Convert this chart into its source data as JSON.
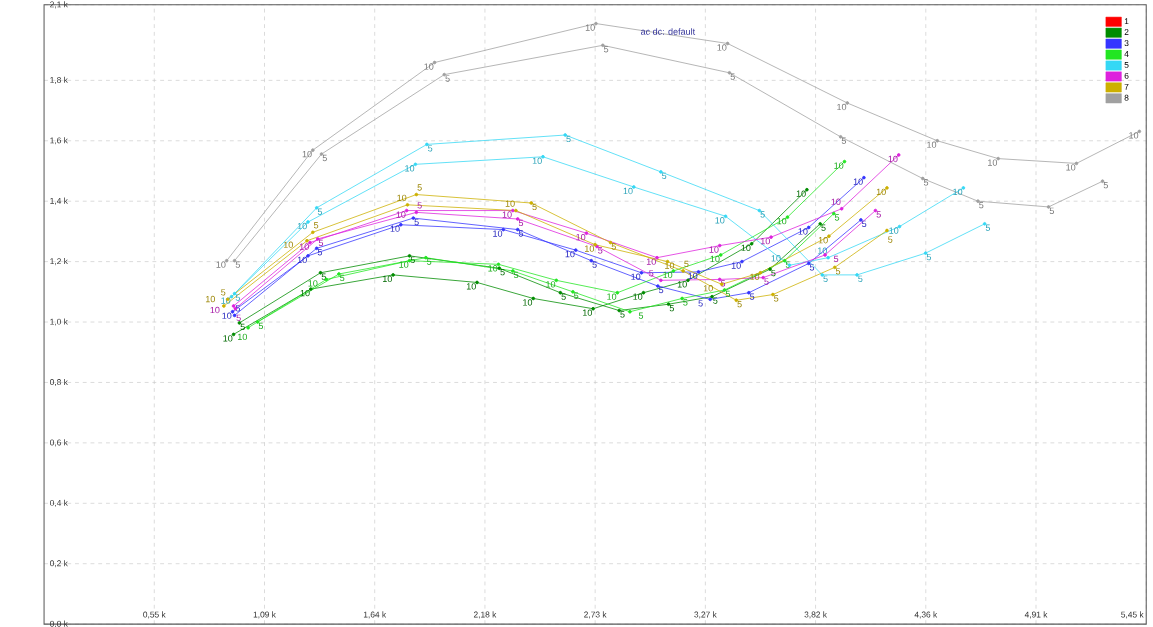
{
  "chart_data": {
    "type": "line",
    "xlim": [
      0,
      5.45
    ],
    "ylim": [
      0,
      2.05
    ],
    "xticks": [
      {
        "value": 0.545,
        "label": "0,55 k"
      },
      {
        "value": 1.09,
        "label": "1,09 k"
      },
      {
        "value": 1.635,
        "label": "1,64 k"
      },
      {
        "value": 2.18,
        "label": "2,18 k"
      },
      {
        "value": 2.725,
        "label": "2,73 k"
      },
      {
        "value": 3.27,
        "label": "3,27 k"
      },
      {
        "value": 3.815,
        "label": "3,82 k"
      },
      {
        "value": 4.36,
        "label": "4,36 k"
      },
      {
        "value": 4.905,
        "label": "4,91 k"
      },
      {
        "value": 5.45,
        "label": "5,45 k"
      }
    ],
    "yticks": [
      {
        "value": 0,
        "label": "0,0 k"
      },
      {
        "value": 0.2,
        "label": "0,2 k"
      },
      {
        "value": 0.4,
        "label": "0,4 k"
      },
      {
        "value": 0.6,
        "label": "0,6 k"
      },
      {
        "value": 0.8,
        "label": "0,8 k"
      },
      {
        "value": 1.0,
        "label": "1,0 k"
      },
      {
        "value": 1.2,
        "label": "1,2 k"
      },
      {
        "value": 1.4,
        "label": "1,4 k"
      },
      {
        "value": 1.6,
        "label": "1,6 k"
      },
      {
        "value": 1.8,
        "label": "1,8 k"
      },
      {
        "value": 2.05,
        "label": "2,1 k"
      }
    ],
    "grid": true,
    "legend": "top right",
    "marker": "circle",
    "line_style": "solid",
    "series": [
      {
        "name": "1",
        "color": "#ff0000"
      },
      {
        "name": "2",
        "color": "#008c00",
        "x": [
          0.937,
          1.319,
          1.726,
          2.141,
          2.419,
          2.715,
          2.964,
          3.184,
          3.499,
          3.772
        ],
        "values": [
          0.959,
          1.109,
          1.156,
          1.131,
          1.078,
          1.044,
          1.097,
          1.138,
          1.259,
          1.438
        ]
      },
      {
        "color": "#008c00",
        "x": [
          0.966,
          1.367,
          1.807,
          2.251,
          2.553,
          2.844,
          3.088,
          3.303,
          3.59,
          3.838
        ],
        "values": [
          0.997,
          1.163,
          1.219,
          1.178,
          1.097,
          1.038,
          1.059,
          1.084,
          1.175,
          1.325
        ]
      },
      {
        "name": "3",
        "color": "#3535ff",
        "x": [
          0.932,
          1.305,
          1.764,
          2.271,
          2.629,
          2.954,
          3.236,
          3.451,
          3.781,
          4.054
        ],
        "values": [
          1.034,
          1.219,
          1.322,
          1.306,
          1.238,
          1.163,
          1.166,
          1.2,
          1.313,
          1.478
        ]
      },
      {
        "color": "#3535ff",
        "x": [
          0.942,
          1.348,
          1.826,
          2.342,
          2.706,
          3.035,
          3.294,
          3.485,
          3.781,
          4.039
        ],
        "values": [
          1.022,
          1.244,
          1.344,
          1.306,
          1.203,
          1.119,
          1.075,
          1.097,
          1.194,
          1.338
        ]
      },
      {
        "name": "4",
        "color": "#22e622",
        "x": [
          1.009,
          1.396,
          1.807,
          2.247,
          2.533,
          2.835,
          3.112,
          3.346,
          3.676,
          3.958
        ],
        "values": [
          0.981,
          1.141,
          1.203,
          1.191,
          1.138,
          1.097,
          1.169,
          1.222,
          1.347,
          1.531
        ]
      },
      {
        "color": "#22e622",
        "x": [
          1.056,
          1.458,
          1.888,
          2.318,
          2.615,
          2.897,
          3.155,
          3.365,
          3.662,
          3.905
        ],
        "values": [
          1.0,
          1.159,
          1.213,
          1.169,
          1.1,
          1.034,
          1.078,
          1.106,
          1.203,
          1.359
        ]
      },
      {
        "name": "5",
        "color": "#35d8f5",
        "x": [
          0.927,
          1.305,
          1.836,
          2.467,
          2.916,
          3.37,
          3.686,
          3.877,
          4.23,
          4.546
        ],
        "values": [
          1.084,
          1.331,
          1.522,
          1.547,
          1.447,
          1.35,
          1.188,
          1.213,
          1.316,
          1.444
        ]
      },
      {
        "color": "#35d8f5",
        "x": [
          0.942,
          1.348,
          1.893,
          2.577,
          3.05,
          3.537,
          3.848,
          4.02,
          4.359,
          4.651
        ],
        "values": [
          1.094,
          1.378,
          1.588,
          1.619,
          1.497,
          1.369,
          1.156,
          1.156,
          1.228,
          1.325
        ]
      },
      {
        "name": "6",
        "color": "#dd22dd",
        "x": [
          0.937,
          1.315,
          1.793,
          2.318,
          2.682,
          3.031,
          3.341,
          3.595,
          3.944,
          4.226
        ],
        "values": [
          1.053,
          1.263,
          1.369,
          1.369,
          1.294,
          1.213,
          1.253,
          1.281,
          1.375,
          1.553
        ]
      },
      {
        "color": "#dd22dd",
        "x": [
          0.946,
          1.353,
          1.841,
          2.342,
          2.734,
          3.05,
          3.341,
          3.556,
          3.862,
          4.111
        ],
        "values": [
          1.044,
          1.275,
          1.363,
          1.341,
          1.25,
          1.138,
          1.141,
          1.147,
          1.222,
          1.369
        ]
      },
      {
        "name": "7",
        "color": "#cdb000",
        "x": [
          0.889,
          1.3,
          1.797,
          2.333,
          2.725,
          3.083,
          3.351,
          3.542,
          3.881,
          4.168
        ],
        "values": [
          1.053,
          1.269,
          1.388,
          1.369,
          1.256,
          1.2,
          1.125,
          1.163,
          1.284,
          1.444
        ]
      },
      {
        "color": "#cdb000",
        "x": [
          0.908,
          1.329,
          1.841,
          2.409,
          2.801,
          3.16,
          3.423,
          3.604,
          3.91,
          4.168
        ],
        "values": [
          1.075,
          1.297,
          1.422,
          1.394,
          1.263,
          1.169,
          1.072,
          1.091,
          1.181,
          1.303
        ]
      },
      {
        "name": "8",
        "color": "#a0a0a0",
        "x": [
          0.903,
          1.329,
          1.931,
          2.729,
          3.38,
          3.972,
          4.417,
          4.718,
          5.105,
          5.416
        ],
        "values": [
          1.203,
          1.569,
          1.859,
          1.988,
          1.922,
          1.725,
          1.6,
          1.541,
          1.525,
          1.631
        ]
      },
      {
        "color": "#a0a0a0",
        "x": [
          0.942,
          1.372,
          1.979,
          2.763,
          3.389,
          3.939,
          4.345,
          4.618,
          4.967,
          5.234
        ],
        "values": [
          1.203,
          1.556,
          1.819,
          1.916,
          1.825,
          1.613,
          1.475,
          1.4,
          1.381,
          1.466
        ]
      }
    ],
    "annotations": [
      "ac dc: default",
      {
        "text": "10",
        "x": 0.937,
        "y": 0.959
      },
      {
        "text": "10",
        "x": 1.319,
        "y": 1.109
      },
      {
        "text": "10",
        "x": 1.726,
        "y": 1.156
      },
      {
        "text": "10",
        "x": 2.141,
        "y": 1.131
      },
      {
        "text": "10",
        "x": 2.419,
        "y": 1.078
      },
      {
        "text": "10",
        "x": 2.715,
        "y": 1.044
      },
      {
        "text": "10",
        "x": 2.964,
        "y": 1.097
      },
      {
        "text": "10",
        "x": 3.184,
        "y": 1.138
      },
      {
        "text": "10",
        "x": 3.499,
        "y": 1.259
      },
      {
        "text": "10",
        "x": 3.772,
        "y": 1.438
      },
      {
        "text": "5",
        "x": 0.966,
        "y": 0.997
      },
      {
        "text": "5",
        "x": 1.367,
        "y": 1.163
      },
      {
        "text": "5",
        "x": 1.807,
        "y": 1.219
      },
      {
        "text": "5",
        "x": 2.251,
        "y": 1.178
      },
      {
        "text": "5",
        "x": 2.553,
        "y": 1.097
      },
      {
        "text": "5",
        "x": 2.844,
        "y": 1.038
      },
      {
        "text": "5",
        "x": 3.088,
        "y": 1.059
      },
      {
        "text": "5",
        "x": 3.303,
        "y": 1.084
      },
      {
        "text": "5",
        "x": 3.59,
        "y": 1.175
      },
      {
        "text": "5",
        "x": 3.838,
        "y": 1.325
      },
      {
        "text": "10",
        "x": 0.932,
        "y": 1.034
      },
      {
        "text": "10",
        "x": 1.305,
        "y": 1.219
      },
      {
        "text": "10",
        "x": 1.764,
        "y": 1.322
      },
      {
        "text": "10",
        "x": 2.271,
        "y": 1.306
      },
      {
        "text": "10",
        "x": 2.629,
        "y": 1.238
      },
      {
        "text": "10",
        "x": 2.954,
        "y": 1.163
      },
      {
        "text": "10",
        "x": 3.236,
        "y": 1.166
      },
      {
        "text": "10",
        "x": 3.451,
        "y": 1.2
      },
      {
        "text": "10",
        "x": 3.781,
        "y": 1.313
      },
      {
        "text": "10",
        "x": 4.054,
        "y": 1.478
      },
      {
        "text": "5",
        "x": 0.942,
        "y": 1.022
      },
      {
        "text": "5",
        "x": 1.348,
        "y": 1.244
      },
      {
        "text": "5",
        "x": 1.826,
        "y": 1.344
      },
      {
        "text": "5",
        "x": 2.342,
        "y": 1.306
      },
      {
        "text": "5",
        "x": 2.706,
        "y": 1.203
      },
      {
        "text": "5",
        "x": 3.035,
        "y": 1.119
      },
      {
        "text": "5",
        "x": 3.294,
        "y": 1.075
      },
      {
        "text": "5",
        "x": 3.485,
        "y": 1.097
      },
      {
        "text": "5",
        "x": 3.781,
        "y": 1.194
      },
      {
        "text": "5",
        "x": 4.039,
        "y": 1.338
      },
      {
        "text": "10",
        "x": 1.009,
        "y": 0.981
      },
      {
        "text": "10",
        "x": 1.396,
        "y": 1.141
      },
      {
        "text": "10",
        "x": 1.807,
        "y": 1.203
      },
      {
        "text": "10",
        "x": 2.247,
        "y": 1.191
      },
      {
        "text": "10",
        "x": 2.533,
        "y": 1.138
      },
      {
        "text": "10",
        "x": 2.835,
        "y": 1.097
      },
      {
        "text": "10",
        "x": 3.112,
        "y": 1.169
      },
      {
        "text": "10",
        "x": 3.346,
        "y": 1.222
      },
      {
        "text": "10",
        "x": 3.676,
        "y": 1.347
      },
      {
        "text": "10",
        "x": 3.958,
        "y": 1.531
      },
      {
        "text": "5",
        "x": 1.056,
        "y": 1.0
      },
      {
        "text": "5",
        "x": 1.458,
        "y": 1.159
      },
      {
        "text": "5",
        "x": 1.888,
        "y": 1.213
      },
      {
        "text": "5",
        "x": 2.318,
        "y": 1.169
      },
      {
        "text": "5",
        "x": 2.615,
        "y": 1.1
      },
      {
        "text": "5",
        "x": 2.897,
        "y": 1.034
      },
      {
        "text": "5",
        "x": 3.155,
        "y": 1.078
      },
      {
        "text": "5",
        "x": 3.365,
        "y": 1.106
      },
      {
        "text": "5",
        "x": 3.662,
        "y": 1.203
      },
      {
        "text": "5",
        "x": 3.905,
        "y": 1.359
      },
      {
        "text": "10",
        "x": 0.927,
        "y": 1.084
      },
      {
        "text": "10",
        "x": 1.305,
        "y": 1.331
      },
      {
        "text": "10",
        "x": 1.836,
        "y": 1.522
      },
      {
        "text": "10",
        "x": 2.467,
        "y": 1.547
      },
      {
        "text": "10",
        "x": 2.916,
        "y": 1.447
      },
      {
        "text": "10",
        "x": 3.37,
        "y": 1.35
      },
      {
        "text": "10",
        "x": 3.686,
        "y": 1.188
      },
      {
        "text": "10",
        "x": 3.877,
        "y": 1.213
      },
      {
        "text": "10",
        "x": 4.23,
        "y": 1.316
      },
      {
        "text": "10",
        "x": 4.546,
        "y": 1.444
      },
      {
        "text": "5",
        "x": 0.942,
        "y": 1.094
      },
      {
        "text": "5",
        "x": 1.348,
        "y": 1.378
      },
      {
        "text": "5",
        "x": 1.893,
        "y": 1.588
      },
      {
        "text": "5",
        "x": 2.577,
        "y": 1.619
      },
      {
        "text": "5",
        "x": 3.05,
        "y": 1.497
      },
      {
        "text": "5",
        "x": 3.537,
        "y": 1.369
      },
      {
        "text": "5",
        "x": 3.848,
        "y": 1.156
      },
      {
        "text": "5",
        "x": 4.02,
        "y": 1.156
      },
      {
        "text": "5",
        "x": 4.359,
        "y": 1.228
      },
      {
        "text": "5",
        "x": 4.651,
        "y": 1.325
      },
      {
        "text": "10",
        "x": 0.937,
        "y": 1.053
      },
      {
        "text": "10",
        "x": 1.315,
        "y": 1.263
      },
      {
        "text": "10",
        "x": 1.793,
        "y": 1.369
      },
      {
        "text": "10",
        "x": 2.318,
        "y": 1.369
      },
      {
        "text": "10",
        "x": 2.682,
        "y": 1.294
      },
      {
        "text": "10",
        "x": 3.031,
        "y": 1.213
      },
      {
        "text": "10",
        "x": 3.341,
        "y": 1.253
      },
      {
        "text": "10",
        "x": 3.595,
        "y": 1.281
      },
      {
        "text": "10",
        "x": 3.944,
        "y": 1.375
      },
      {
        "text": "10",
        "x": 4.226,
        "y": 1.553
      },
      {
        "text": "5",
        "x": 0.946,
        "y": 1.044
      },
      {
        "text": "5",
        "x": 1.353,
        "y": 1.275
      },
      {
        "text": "5",
        "x": 1.841,
        "y": 1.363
      },
      {
        "text": "5",
        "x": 2.342,
        "y": 1.341
      },
      {
        "text": "5",
        "x": 2.734,
        "y": 1.25
      },
      {
        "text": "5",
        "x": 3.05,
        "y": 1.138
      },
      {
        "text": "5",
        "x": 3.341,
        "y": 1.141
      },
      {
        "text": "5",
        "x": 3.556,
        "y": 1.147
      },
      {
        "text": "5",
        "x": 3.862,
        "y": 1.222
      },
      {
        "text": "5",
        "x": 4.111,
        "y": 1.369
      },
      {
        "text": "10",
        "x": 0.889,
        "y": 1.053
      },
      {
        "text": "10",
        "x": 1.3,
        "y": 1.269
      },
      {
        "text": "10",
        "x": 1.797,
        "y": 1.388
      },
      {
        "text": "10",
        "x": 2.333,
        "y": 1.369
      },
      {
        "text": "10",
        "x": 2.725,
        "y": 1.256
      },
      {
        "text": "10",
        "x": 3.083,
        "y": 1.2
      },
      {
        "text": "10",
        "x": 3.351,
        "y": 1.125
      },
      {
        "text": "10",
        "x": 3.542,
        "y": 1.163
      },
      {
        "text": "10",
        "x": 3.881,
        "y": 1.284
      },
      {
        "text": "10",
        "x": 4.168,
        "y": 1.444
      },
      {
        "text": "5",
        "x": 0.908,
        "y": 1.075
      },
      {
        "text": "5",
        "x": 1.329,
        "y": 1.297
      },
      {
        "text": "5",
        "x": 1.841,
        "y": 1.422
      },
      {
        "text": "5",
        "x": 2.409,
        "y": 1.394
      },
      {
        "text": "5",
        "x": 2.801,
        "y": 1.263
      },
      {
        "text": "5",
        "x": 3.16,
        "y": 1.169
      },
      {
        "text": "5",
        "x": 3.423,
        "y": 1.072
      },
      {
        "text": "5",
        "x": 3.604,
        "y": 1.091
      },
      {
        "text": "5",
        "x": 3.91,
        "y": 1.181
      },
      {
        "text": "5",
        "x": 4.168,
        "y": 1.303
      },
      {
        "text": "10",
        "x": 0.903,
        "y": 1.203
      },
      {
        "text": "10",
        "x": 1.329,
        "y": 1.569
      },
      {
        "text": "10",
        "x": 1.931,
        "y": 1.859
      },
      {
        "text": "10",
        "x": 2.729,
        "y": 1.988
      },
      {
        "text": "10",
        "x": 3.38,
        "y": 1.922
      },
      {
        "text": "10",
        "x": 3.972,
        "y": 1.725
      },
      {
        "text": "10",
        "x": 4.417,
        "y": 1.6
      },
      {
        "text": "10",
        "x": 4.718,
        "y": 1.541
      },
      {
        "text": "10",
        "x": 5.105,
        "y": 1.525
      },
      {
        "text": "10",
        "x": 5.416,
        "y": 1.631
      },
      {
        "text": "5",
        "x": 0.942,
        "y": 1.203
      },
      {
        "text": "5",
        "x": 1.372,
        "y": 1.556
      },
      {
        "text": "5",
        "x": 1.979,
        "y": 1.819
      },
      {
        "text": "5",
        "x": 2.763,
        "y": 1.916
      },
      {
        "text": "5",
        "x": 3.389,
        "y": 1.825
      },
      {
        "text": "5",
        "x": 3.939,
        "y": 1.613
      },
      {
        "text": "5",
        "x": 4.345,
        "y": 1.475
      },
      {
        "text": "5",
        "x": 4.618,
        "y": 1.4
      },
      {
        "text": "5",
        "x": 4.967,
        "y": 1.381
      },
      {
        "text": "5",
        "x": 5.234,
        "y": 1.466
      }
    ]
  }
}
